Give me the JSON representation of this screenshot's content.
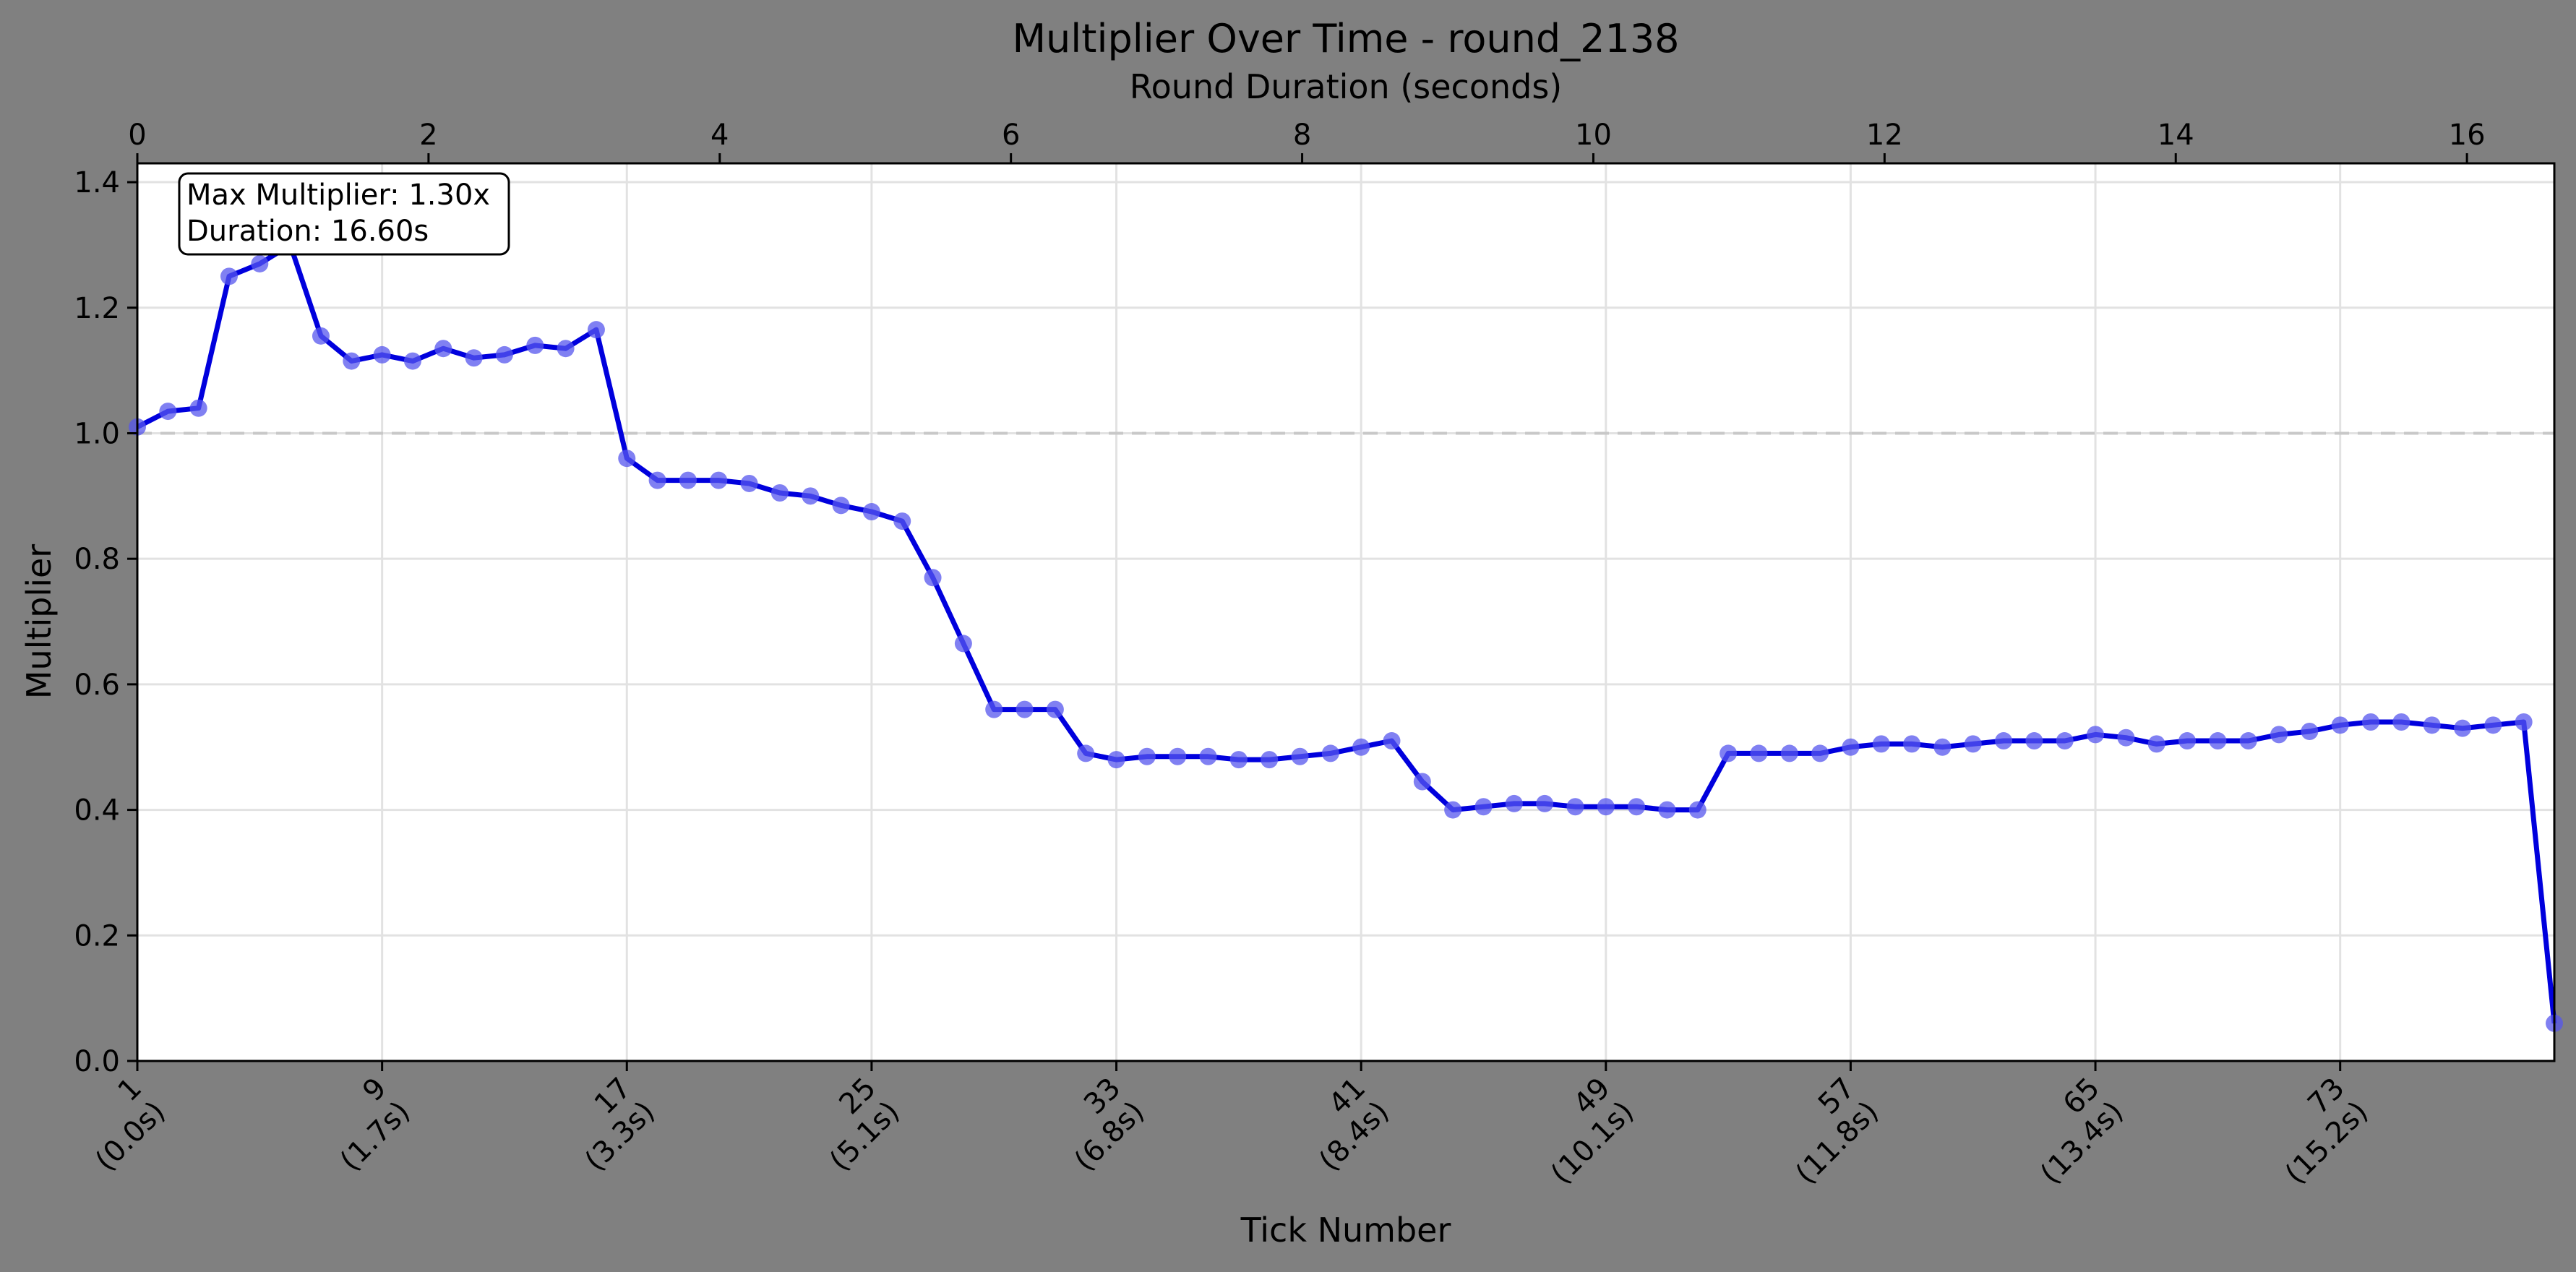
{
  "chart_data": {
    "type": "line",
    "title": "Multiplier Over Time - round_2138",
    "xlabel": "Tick Number",
    "ylabel": "Multiplier",
    "top_xlabel": "Round Duration (seconds)",
    "x_range": [
      1,
      80
    ],
    "top_x_range": [
      0,
      16.6
    ],
    "ylim": [
      0,
      1.43
    ],
    "y_ticks": [
      "0.0",
      "0.2",
      "0.4",
      "0.6",
      "0.8",
      "1.0",
      "1.2",
      "1.4"
    ],
    "top_ticks": [
      "0",
      "2",
      "4",
      "6",
      "8",
      "10",
      "12",
      "14",
      "16"
    ],
    "x_ticks": [
      {
        "x": 1,
        "label": "1",
        "sub": "(0.0s)"
      },
      {
        "x": 9,
        "label": "9",
        "sub": "(1.7s)"
      },
      {
        "x": 17,
        "label": "17",
        "sub": "(3.3s)"
      },
      {
        "x": 25,
        "label": "25",
        "sub": "(5.1s)"
      },
      {
        "x": 33,
        "label": "33",
        "sub": "(6.8s)"
      },
      {
        "x": 41,
        "label": "41",
        "sub": "(8.4s)"
      },
      {
        "x": 49,
        "label": "49",
        "sub": "(10.1s)"
      },
      {
        "x": 57,
        "label": "57",
        "sub": "(11.8s)"
      },
      {
        "x": 65,
        "label": "65",
        "sub": "(13.4s)"
      },
      {
        "x": 73,
        "label": "73",
        "sub": "(15.2s)"
      }
    ],
    "reference_line": 1.0,
    "grid": true,
    "line_color": "#0000dd",
    "marker_color": "#5555ee",
    "annotation": [
      "Max Multiplier: 1.30x",
      "Duration: 16.60s"
    ],
    "series": [
      {
        "values": [
          1.01,
          1.035,
          1.04,
          1.25,
          1.27,
          1.3,
          1.155,
          1.115,
          1.125,
          1.115,
          1.135,
          1.12,
          1.125,
          1.14,
          1.135,
          1.165,
          0.96,
          0.925,
          0.925,
          0.925,
          0.92,
          0.905,
          0.9,
          0.885,
          0.875,
          0.86,
          0.77,
          0.665,
          0.56,
          0.56,
          0.56,
          0.49,
          0.48,
          0.485,
          0.485,
          0.485,
          0.48,
          0.48,
          0.485,
          0.49,
          0.5,
          0.51,
          0.445,
          0.4,
          0.405,
          0.41,
          0.41,
          0.405,
          0.405,
          0.405,
          0.4,
          0.4,
          0.49,
          0.49,
          0.49,
          0.49,
          0.5,
          0.505,
          0.505,
          0.5,
          0.505,
          0.51,
          0.51,
          0.51,
          0.52,
          0.515,
          0.505,
          0.51,
          0.51,
          0.51,
          0.52,
          0.525,
          0.535,
          0.54,
          0.54,
          0.535,
          0.53,
          0.535,
          0.54,
          0.06
        ]
      }
    ]
  }
}
